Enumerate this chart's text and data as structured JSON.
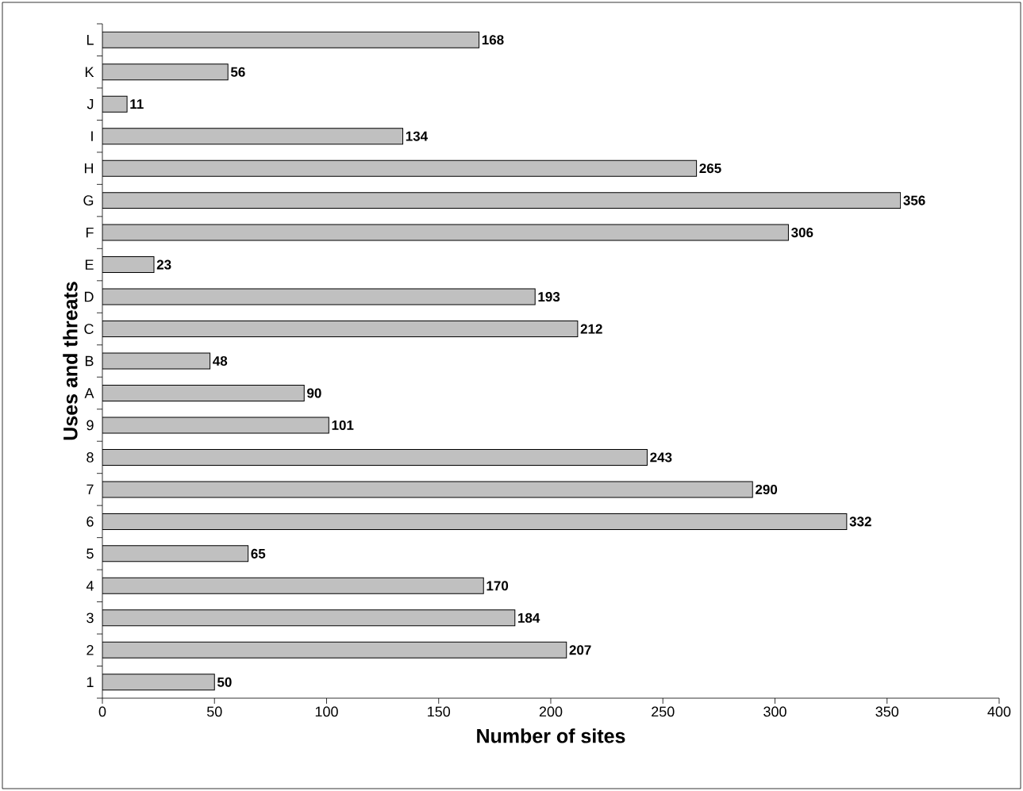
{
  "chart_data": {
    "type": "bar",
    "orientation": "horizontal",
    "xlabel": "Number of sites",
    "ylabel": "Uses and threats",
    "categories": [
      "L",
      "K",
      "J",
      "I",
      "H",
      "G",
      "F",
      "E",
      "D",
      "C",
      "B",
      "A",
      "9",
      "8",
      "7",
      "6",
      "5",
      "4",
      "3",
      "2",
      "1"
    ],
    "values": [
      168,
      56,
      11,
      134,
      265,
      356,
      306,
      23,
      193,
      212,
      48,
      90,
      101,
      243,
      290,
      332,
      65,
      170,
      184,
      207,
      50
    ],
    "color": "#c0c0c0",
    "data_labels": true,
    "grid": false,
    "xlim": [
      0,
      400
    ],
    "xticks": [
      0,
      50,
      100,
      150,
      200,
      250,
      300,
      350,
      400
    ]
  }
}
